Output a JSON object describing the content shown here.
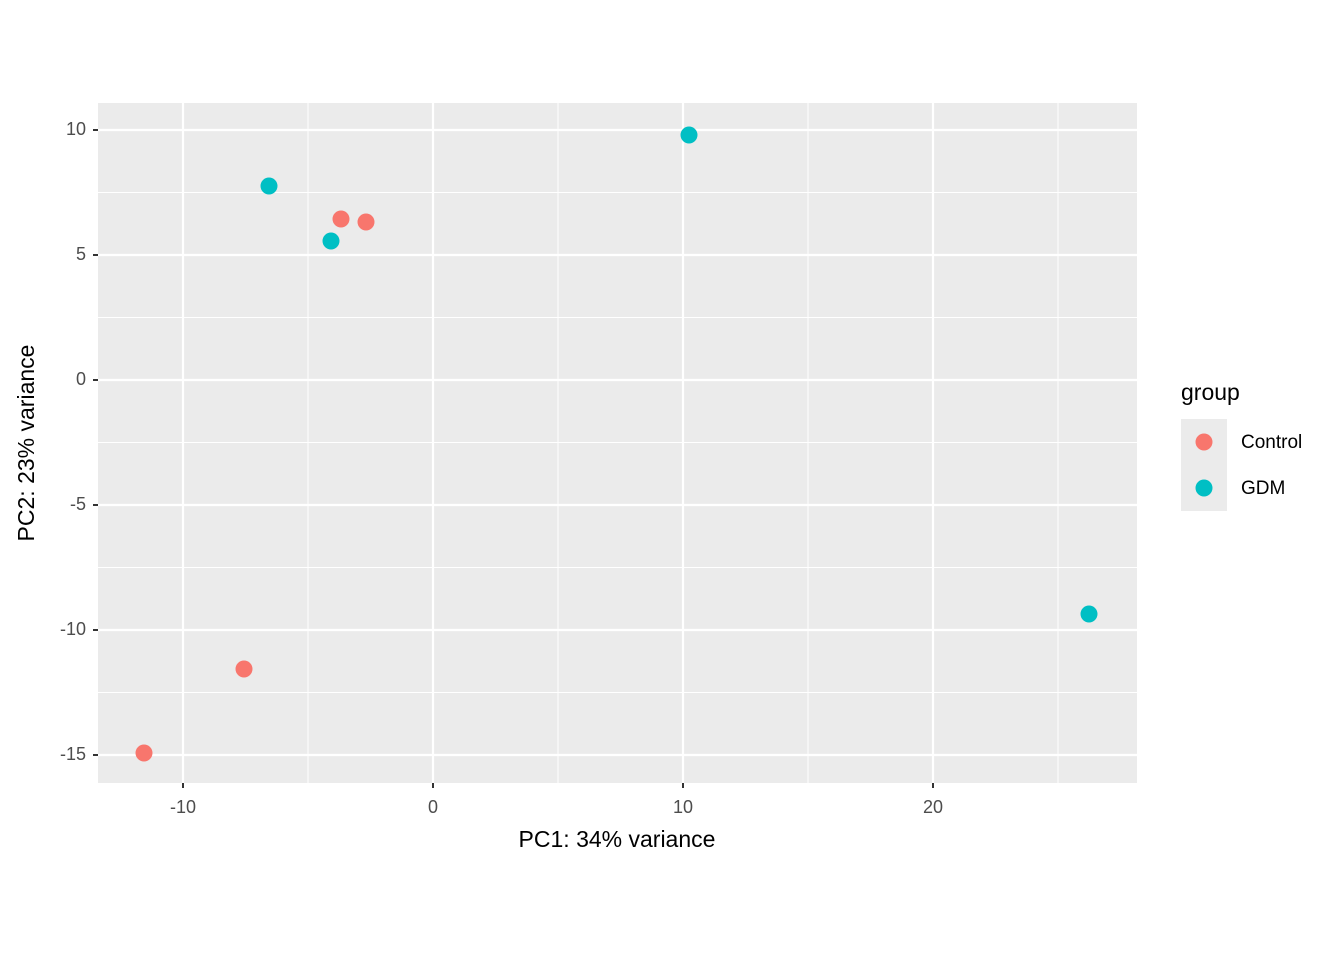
{
  "chart_data": {
    "type": "scatter",
    "x_label": "PC1: 34% variance",
    "y_label": "PC2: 23% variance",
    "legend_title": "group",
    "legend_position": "right",
    "grid": true,
    "xlim": [
      -13.4,
      28.16
    ],
    "ylim": [
      -16.12,
      11.08
    ],
    "xticks": [
      -10,
      0,
      10,
      20
    ],
    "yticks": [
      -15,
      -10,
      -5,
      0,
      5,
      10
    ],
    "minor_xticks": [
      -5,
      5,
      15,
      25
    ],
    "minor_yticks": [
      -12.5,
      -7.5,
      -2.5,
      2.5,
      7.5
    ],
    "series": [
      {
        "name": "Control",
        "color": "#F8766D",
        "x": [
          -3.68,
          -2.68,
          -7.56,
          -11.56
        ],
        "values": [
          6.44,
          6.32,
          -11.56,
          -14.92
        ]
      },
      {
        "name": "GDM",
        "color": "#00BFC4",
        "x": [
          -6.56,
          -4.08,
          10.24,
          26.24
        ],
        "values": [
          7.76,
          5.56,
          9.8,
          -9.36
        ]
      }
    ]
  }
}
